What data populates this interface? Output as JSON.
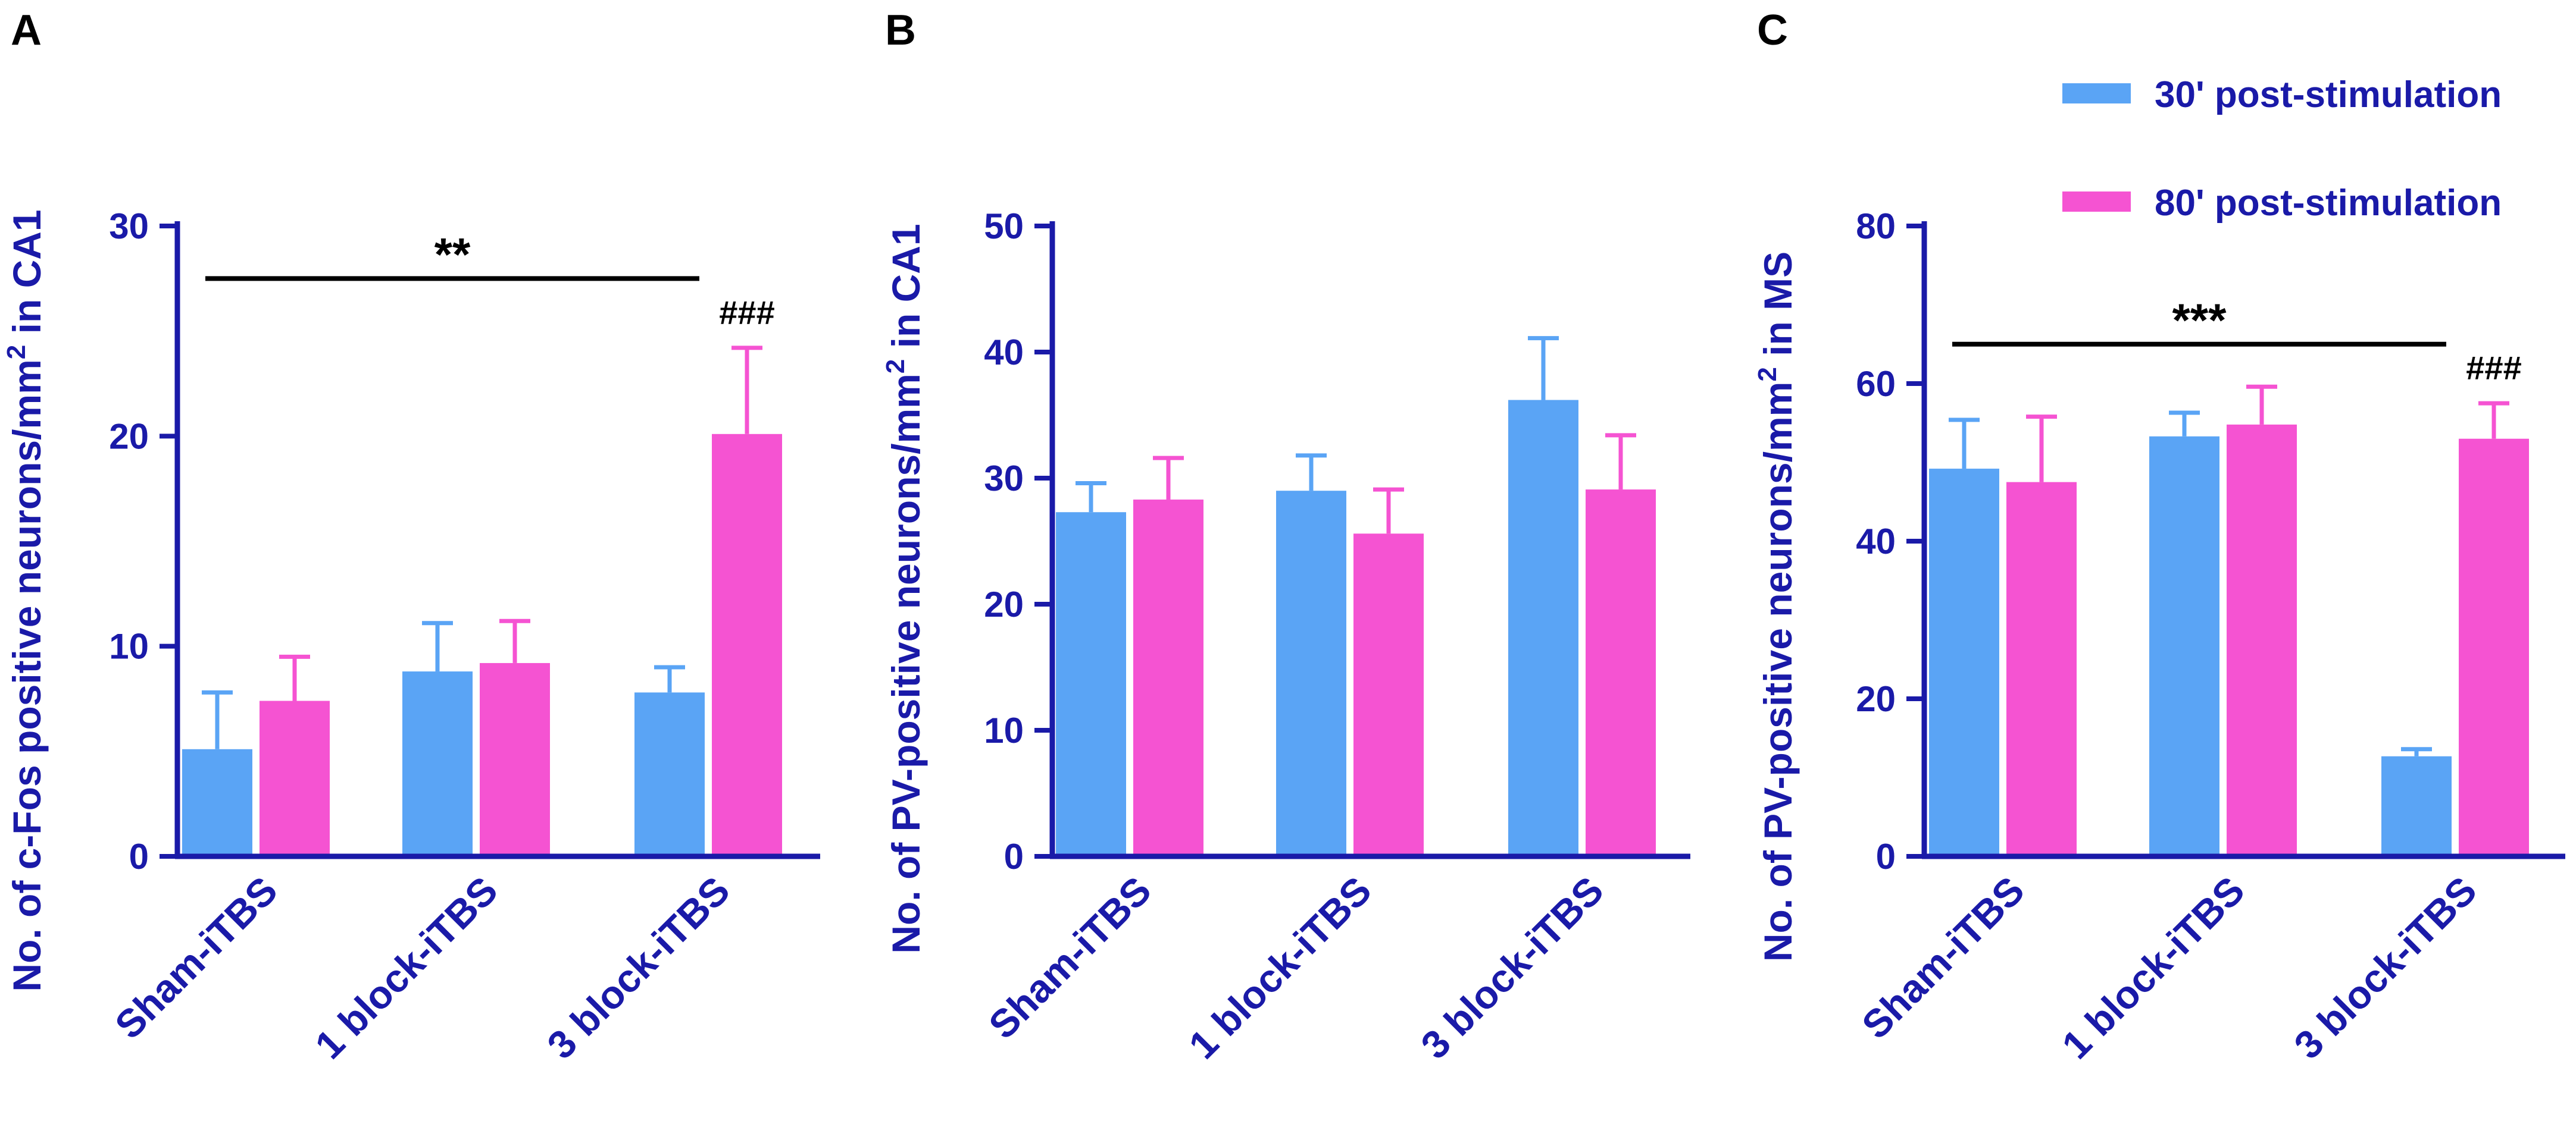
{
  "colors": {
    "series1": "#5aa4f5",
    "series2": "#f553d2",
    "axis": "#1a1aa8"
  },
  "legend": {
    "items": [
      {
        "label": "30' post-stimulation",
        "color": "#5aa4f5"
      },
      {
        "label": "80' post-stimulation",
        "color": "#f553d2"
      }
    ]
  },
  "chart_data": [
    {
      "panel": "A",
      "type": "bar",
      "ylabel_pre": "No. of c-Fos positive neurons/mm",
      "ylabel_sup": "2",
      "ylabel_post": " in CA1",
      "ylim": [
        0,
        30
      ],
      "yticks": [
        "0",
        "10",
        "20",
        "30"
      ],
      "ytick_values": [
        0,
        10,
        20,
        30
      ],
      "categories": [
        "Sham-iTBS",
        "1 block-iTBS",
        "3 block-iTBS"
      ],
      "series": [
        {
          "name": "30' post-stimulation",
          "values": [
            5.1,
            8.8,
            7.8
          ],
          "errors": [
            2.7,
            2.3,
            1.2
          ]
        },
        {
          "name": "80' post-stimulation",
          "values": [
            7.4,
            9.2,
            20.1
          ],
          "errors": [
            2.1,
            2.0,
            4.1
          ]
        }
      ],
      "significance": {
        "text": "**",
        "from_category": 0,
        "to_category": 2,
        "y": 27.5
      },
      "hash": {
        "text": "###",
        "category": 2,
        "series": 1
      }
    },
    {
      "panel": "B",
      "type": "bar",
      "ylabel_pre": "No. of PV-positive neurons/mm",
      "ylabel_sup": "2",
      "ylabel_post": " in CA1",
      "ylim": [
        0,
        50
      ],
      "yticks": [
        "0",
        "10",
        "20",
        "30",
        "40",
        "50"
      ],
      "ytick_values": [
        0,
        10,
        20,
        30,
        40,
        50
      ],
      "categories": [
        "Sham-iTBS",
        "1 block-iTBS",
        "3 block-iTBS"
      ],
      "series": [
        {
          "name": "30' post-stimulation",
          "values": [
            27.3,
            29.0,
            36.2
          ],
          "errors": [
            2.3,
            2.8,
            4.9
          ]
        },
        {
          "name": "80' post-stimulation",
          "values": [
            28.3,
            25.6,
            29.1
          ],
          "errors": [
            3.3,
            3.5,
            4.3
          ]
        }
      ]
    },
    {
      "panel": "C",
      "type": "bar",
      "ylabel_pre": "No. of PV-positive neurons/mm",
      "ylabel_sup": "2",
      "ylabel_post": " in MS",
      "ylim": [
        0,
        80
      ],
      "yticks": [
        "0",
        "20",
        "40",
        "60",
        "80"
      ],
      "ytick_values": [
        0,
        20,
        40,
        60,
        80
      ],
      "categories": [
        "Sham-iTBS",
        "1 block-iTBS",
        "3 block-iTBS"
      ],
      "series": [
        {
          "name": "30' post-stimulation",
          "values": [
            49.2,
            53.3,
            12.7
          ],
          "errors": [
            6.2,
            3.0,
            0.9
          ]
        },
        {
          "name": "80' post-stimulation",
          "values": [
            47.5,
            54.8,
            53.0
          ],
          "errors": [
            8.3,
            4.8,
            4.5
          ]
        }
      ],
      "significance": {
        "text": "***",
        "from_category": 0,
        "to_category": 2,
        "y": 65
      },
      "hash": {
        "text": "###",
        "category": 2,
        "series": 1
      }
    }
  ]
}
